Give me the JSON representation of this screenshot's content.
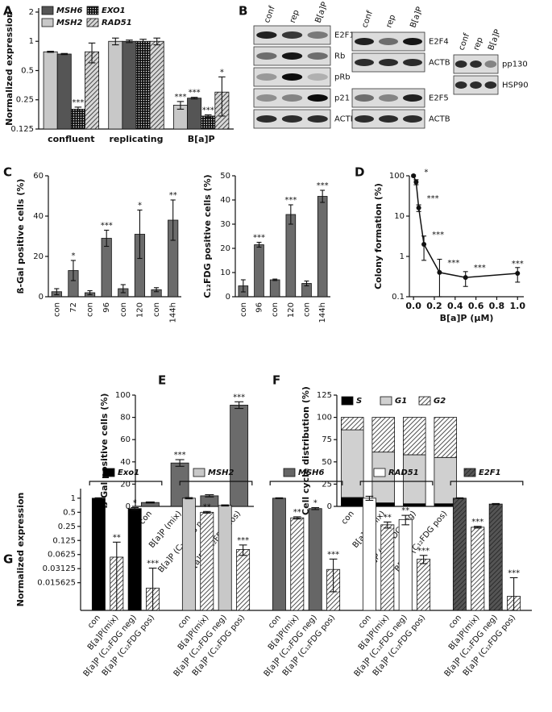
{
  "panel_labels": [
    "A",
    "B",
    "C",
    "D",
    "E",
    "F",
    "G"
  ],
  "blots": [
    {
      "columns": [
        "conf",
        "rep",
        "B[a]P"
      ],
      "rows": [
        "E2F1",
        "Rb",
        "pRb",
        "p21",
        "ACTB"
      ]
    },
    {
      "columns": [
        "conf",
        "rep",
        "B[a]P"
      ],
      "rows": [
        "E2F4",
        "ACTB"
      ]
    },
    {
      "rows": [
        "E2F5",
        "ACTB"
      ]
    },
    {
      "columns": [
        "conf",
        "rep",
        "B[a]P"
      ],
      "rows": [
        "pp130",
        "HSP90"
      ]
    }
  ],
  "chart_data": [
    {
      "type": "bar",
      "ylabel": "Normalized expression",
      "yscale": "log2",
      "categories": [
        "confluent",
        "replicating",
        "B[a]P"
      ],
      "ylim": [
        0.125,
        2.2
      ],
      "yticks": [
        0.125,
        0.25,
        0.5,
        1,
        2
      ],
      "series": [
        {
          "name": "MSH2",
          "color": "#c8c8c8",
          "pattern": "solid",
          "values": [
            0.78,
            1,
            0.22
          ],
          "errors": [
            0.01,
            0.08,
            0.02
          ],
          "annotations": [
            null,
            null,
            "***"
          ]
        },
        {
          "name": "MSH6",
          "color": "#555555",
          "pattern": "solid",
          "values": [
            0.74,
            1,
            0.26
          ],
          "errors": [
            0.01,
            0.03,
            0.005
          ],
          "annotations": [
            null,
            null,
            "***"
          ]
        },
        {
          "name": "EXO1",
          "color": "#111111",
          "pattern": "dots",
          "values": [
            0.2,
            1,
            0.17
          ],
          "errors": [
            0.01,
            0.05,
            0.005
          ],
          "annotations": [
            "***",
            null,
            "***"
          ]
        },
        {
          "name": "RAD51",
          "color": "#d8d8d8",
          "pattern": "hatch",
          "values": [
            0.78,
            1,
            0.3
          ],
          "errors": [
            0.18,
            0.08,
            0.13
          ],
          "annotations": [
            null,
            null,
            "*"
          ]
        }
      ]
    },
    {
      "type": "bar",
      "ylabel": "ß-Gal positive cells (%)",
      "color": "#6b6b6b",
      "categories": [
        "con",
        "72",
        "con",
        "96",
        "con",
        "120",
        "con",
        "144h"
      ],
      "values": [
        2.5,
        13,
        2,
        29,
        4,
        31,
        3.5,
        38
      ],
      "errors": [
        1.5,
        5,
        1,
        4,
        2,
        12,
        1,
        10
      ],
      "annotations": [
        null,
        "*",
        null,
        "***",
        null,
        "*",
        null,
        "**"
      ],
      "ylim": [
        0,
        60
      ],
      "yticks": [
        0,
        20,
        40,
        60
      ]
    },
    {
      "type": "bar",
      "ylabel": "C₁₂FDG positive cells (%)",
      "color": "#6b6b6b",
      "categories": [
        "con",
        "96",
        "con",
        "120",
        "con",
        "144h"
      ],
      "values": [
        4.5,
        21.5,
        7,
        34,
        5.5,
        41.5
      ],
      "errors": [
        2.5,
        1,
        0.3,
        4,
        1,
        2.5
      ],
      "annotations": [
        null,
        "***",
        null,
        "***",
        null,
        "***"
      ],
      "ylim": [
        0,
        50
      ],
      "yticks": [
        0,
        10,
        20,
        30,
        40,
        50
      ]
    },
    {
      "type": "line",
      "xlabel": "B[a]P (µM)",
      "ylabel": "Colony formation (%)",
      "yscale": "log10",
      "color": "#111111",
      "x": [
        0,
        0.025,
        0.05,
        0.1,
        0.25,
        0.5,
        1
      ],
      "values": [
        100,
        70,
        16,
        2,
        0.4,
        0.3,
        0.38
      ],
      "errors": [
        5,
        10,
        3,
        1.2,
        0.45,
        0.12,
        0.15
      ],
      "annotations": [
        null,
        "*",
        "***",
        "***",
        "***",
        "***",
        "***"
      ],
      "xlim": [
        -0.04,
        1.06
      ],
      "ylim": [
        0.1,
        100
      ],
      "xticks": [
        {
          "value": 0,
          "label": "0.0"
        },
        0.2,
        0.4,
        0.6,
        0.8,
        {
          "value": 1,
          "label": "1.0"
        }
      ],
      "yticks": [
        0.1,
        1,
        10,
        100
      ]
    },
    {
      "type": "bar",
      "ylabel": "ß-Gal positive cells (%)",
      "color": "#6b6b6b",
      "categories": [
        "con",
        "B[a]P (mix)",
        "B[a]P (C₁₂FDG neg)",
        "B[a]P (C₁₂FDG pos)"
      ],
      "values": [
        3.5,
        39,
        9.5,
        91
      ],
      "errors": [
        0.5,
        3,
        1,
        3
      ],
      "annotations": [
        null,
        "***",
        null,
        "***"
      ],
      "ylim": [
        0,
        100
      ],
      "yticks": [
        0,
        20,
        40,
        60,
        80,
        100
      ]
    },
    {
      "type": "stacked_bar",
      "ylabel": "Cell cycle distribution (%)",
      "categories": [
        "con",
        "B[a]P (mix)",
        "B[a]P (C₁₂FDG neg)",
        "B[a]P (C₁₂FDG pos)"
      ],
      "ylim": [
        0,
        125
      ],
      "yticks": [
        0,
        25,
        50,
        75,
        100,
        125
      ],
      "series": [
        {
          "name": "S",
          "color": "#000000",
          "pattern": "solid",
          "values": [
            10,
            4,
            3,
            3
          ]
        },
        {
          "name": "G1",
          "color": "#d0d0d0",
          "pattern": "solid",
          "values": [
            76,
            57,
            55,
            52
          ]
        },
        {
          "name": "G2",
          "color": "#ffffff",
          "pattern": "hatch",
          "values": [
            14,
            39,
            42,
            45
          ]
        }
      ]
    },
    {
      "type": "grouped_bar",
      "ylabel": "Normalized expression",
      "yscale": "log2",
      "categories": [
        "con",
        "B[a]P(mix)",
        "B[a]P (C₁₂FDG neg)",
        "B[a]P (C₁₂FDG pos)"
      ],
      "category_patterns": [
        "solid",
        "hatch",
        "solid",
        "hatch"
      ],
      "hatch_color": "#ffffff",
      "ylim": [
        0.004,
        1.6
      ],
      "yticks": [
        0.015625,
        0.03125,
        0.0625,
        0.125,
        0.25,
        0.5,
        1
      ],
      "groups": [
        {
          "name": "Exo1",
          "color": "#000000",
          "pattern": "solid",
          "values": [
            1,
            0.055,
            0.6,
            0.012
          ],
          "errors": [
            0.02,
            0.06,
            0.03,
            0.02
          ],
          "annotations": [
            null,
            "**",
            "*",
            "***"
          ]
        },
        {
          "name": "MSH2",
          "color": "#c8c8c8",
          "pattern": "solid",
          "values": [
            1,
            0.5,
            0.7,
            0.08
          ],
          "errors": [
            0.03,
            0.02,
            0.02,
            0.02
          ],
          "annotations": [
            null,
            "**",
            null,
            "***"
          ]
        },
        {
          "name": "MSH6",
          "color": "#666666",
          "pattern": "solid",
          "values": [
            1,
            0.38,
            0.6,
            0.03
          ],
          "errors": [
            0.02,
            0.02,
            0.03,
            0.02
          ],
          "annotations": [
            null,
            "**",
            "*",
            "***"
          ]
        },
        {
          "name": "RAD51",
          "color": "#ffffff",
          "pattern": "solid",
          "values": [
            1,
            0.27,
            0.35,
            0.05
          ],
          "errors": [
            0.1,
            0.04,
            0.08,
            0.01
          ],
          "annotations": [
            null,
            "**",
            "**",
            "***"
          ]
        },
        {
          "name": "E2F1",
          "color": "#555555",
          "pattern": "hatch",
          "values": [
            1,
            0.24,
            0.75,
            0.008
          ],
          "errors": [
            0.02,
            0.01,
            0.02,
            0.012
          ],
          "annotations": [
            null,
            "***",
            null,
            "***"
          ]
        }
      ]
    }
  ]
}
